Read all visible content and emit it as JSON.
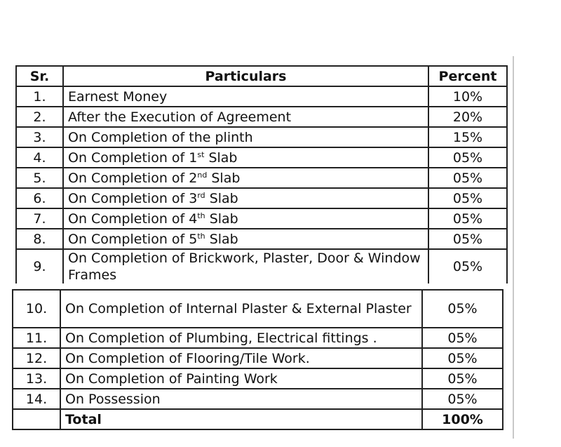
{
  "table_1": {
    "header": [
      "Sr.",
      "Particulars",
      "Percent"
    ],
    "rows": [
      {
        "sr": "1.",
        "particulars": "Earnest Money",
        "percent": "10%"
      },
      {
        "sr": "2.",
        "particulars": "After the Execution of Agreement",
        "percent": "20%"
      },
      {
        "sr": "3.",
        "particulars": "On Completion of the plinth",
        "percent": "15%"
      },
      {
        "sr": "4.",
        "particulars": "On Completion of 1",
        "sup": "st",
        "after": "Slab",
        "percent": "05%"
      },
      {
        "sr": "5.",
        "particulars": "On Completion of 2",
        "sup": "nd",
        "after": "Slab",
        "percent": "05%"
      },
      {
        "sr": "6.",
        "particulars": "On Completion of 3",
        "sup": "rd",
        "after": "Slab",
        "percent": "05%"
      },
      {
        "sr": "7.",
        "particulars": "On Completion of 4",
        "sup": "th",
        "after": "Slab",
        "percent": "05%"
      },
      {
        "sr": "8.",
        "particulars": "On Completion of 5",
        "sup": "th",
        "after": "Slab",
        "percent": "05%"
      },
      {
        "sr": "9.",
        "particulars": "On Completion of Brickwork, Plaster, Door & Window Frames",
        "percent": "05%"
      }
    ]
  },
  "table_2": {
    "rows": [
      {
        "sr": "10.",
        "particulars": "On Completion of Internal Plaster & External Plaster",
        "percent": "05%"
      },
      {
        "sr": "11.",
        "particulars": "On Completion of Plumbing, Electrical fittings .",
        "percent": "05%"
      },
      {
        "sr": "12.",
        "particulars": "On Completion of Flooring/Tile Work.",
        "percent": "05%"
      },
      {
        "sr": "13.",
        "particulars": "On Completion of Painting Work",
        "percent": "05%"
      },
      {
        "sr": "14.",
        "particulars": "On Possession",
        "percent": "05%"
      }
    ],
    "total": {
      "label": "Total",
      "percent": "100%"
    }
  }
}
